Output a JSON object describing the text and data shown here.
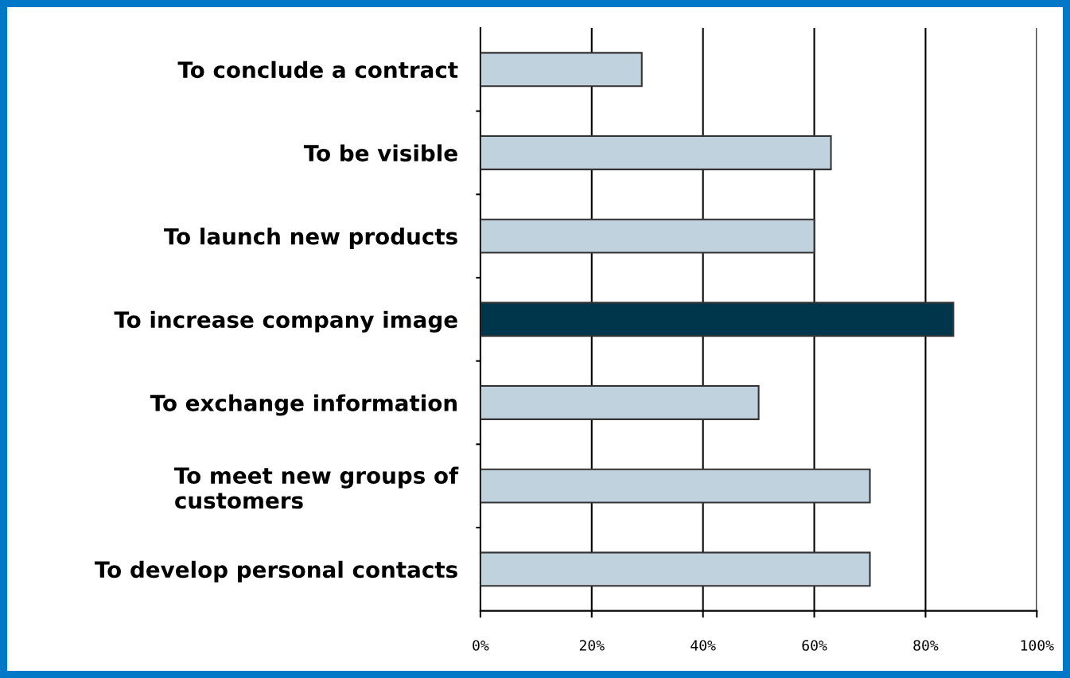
{
  "chart_data": {
    "type": "bar",
    "orientation": "horizontal",
    "categories": [
      "To conclude a contract",
      "To be visible",
      "To launch new products",
      "To increase company image",
      "To exchange information",
      "To meet new groups of\ncustomers",
      "To develop personal contacts"
    ],
    "values": [
      29,
      63,
      60,
      85,
      50,
      70,
      70
    ],
    "colors": [
      "#c0d2de",
      "#c0d2de",
      "#c0d2de",
      "#00364c",
      "#c0d2de",
      "#c0d2de",
      "#c0d2de"
    ],
    "xlim": [
      0,
      100
    ],
    "xticks": [
      {
        "value": 0,
        "label": "0%"
      },
      {
        "value": 20,
        "label": "20%"
      },
      {
        "value": 40,
        "label": "40%"
      },
      {
        "value": 60,
        "label": "60%"
      },
      {
        "value": 80,
        "label": "80%"
      },
      {
        "value": 100,
        "label": "100%"
      }
    ],
    "grid": "x",
    "legend": false
  }
}
